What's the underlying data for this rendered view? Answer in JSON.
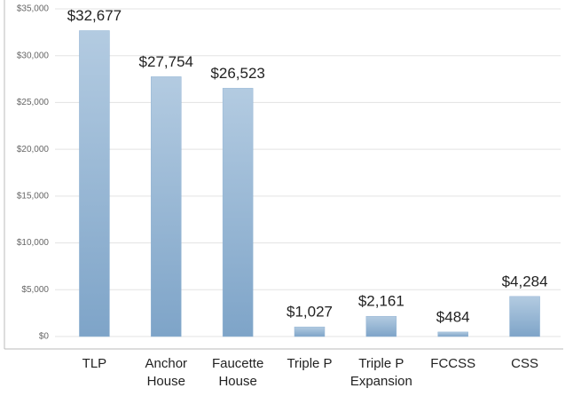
{
  "chart_data": {
    "type": "bar",
    "categories": [
      "TLP",
      "Anchor\nHouse",
      "Faucette\nHouse",
      "Triple P",
      "Triple P\nExpansion",
      "FCCSS",
      "CSS"
    ],
    "values": [
      32677,
      27754,
      26523,
      1027,
      2161,
      484,
      4284
    ],
    "value_labels": [
      "$32,677",
      "$27,754",
      "$26,523",
      "$1,027",
      "$2,161",
      "$484",
      "$4,284"
    ],
    "color": "#93b4d4",
    "ylim": [
      0,
      35000
    ],
    "yticks": [
      {
        "value": 0,
        "label": "$0"
      },
      {
        "value": 5000,
        "label": "$5,000"
      },
      {
        "value": 10000,
        "label": "$10,000"
      },
      {
        "value": 15000,
        "label": "$15,000"
      },
      {
        "value": 20000,
        "label": "$20,000"
      },
      {
        "value": 25000,
        "label": "$25,000"
      },
      {
        "value": 30000,
        "label": "$30,000"
      },
      {
        "value": 35000,
        "label": "$35,000"
      }
    ],
    "grid": true
  }
}
